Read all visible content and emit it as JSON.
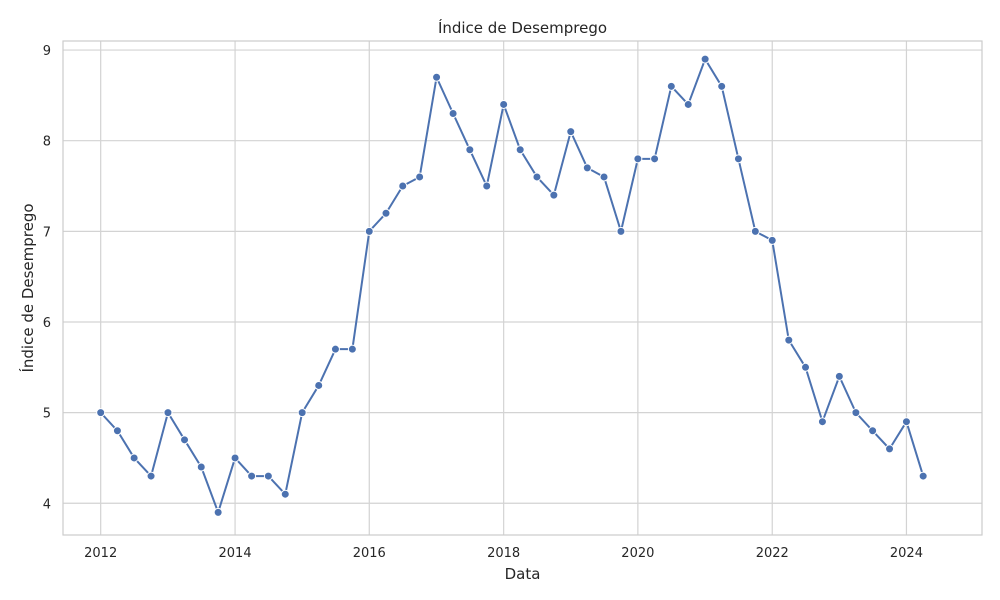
{
  "chart_data": {
    "type": "line",
    "title": "Índice de Desemprego",
    "xlabel": "Data",
    "ylabel": "Índice de Desemprego",
    "x_ticks": [
      "2012",
      "2014",
      "2016",
      "2018",
      "2020",
      "2022",
      "2024"
    ],
    "y_ticks": [
      "4",
      "5",
      "6",
      "7",
      "8",
      "9"
    ],
    "xlim": [
      "2011-06-10",
      "2025-02-15"
    ],
    "ylim": [
      3.65,
      9.1
    ],
    "grid": true,
    "marker": "circle",
    "colors": {
      "series": "#4c72b0",
      "grid": "#d3d3d3",
      "frame": "#cccccc"
    },
    "series": [
      {
        "name": "",
        "x": [
          "2012-01-01",
          "2012-04-01",
          "2012-07-01",
          "2012-10-01",
          "2013-01-01",
          "2013-04-01",
          "2013-07-01",
          "2013-10-01",
          "2014-01-01",
          "2014-04-01",
          "2014-07-01",
          "2014-10-01",
          "2015-01-01",
          "2015-04-01",
          "2015-07-01",
          "2015-10-01",
          "2016-01-01",
          "2016-04-01",
          "2016-07-01",
          "2016-10-01",
          "2017-01-01",
          "2017-04-01",
          "2017-07-01",
          "2017-10-01",
          "2018-01-01",
          "2018-04-01",
          "2018-07-01",
          "2018-10-01",
          "2019-01-01",
          "2019-04-01",
          "2019-07-01",
          "2019-10-01",
          "2020-01-01",
          "2020-04-01",
          "2020-07-01",
          "2020-10-01",
          "2021-01-01",
          "2021-04-01",
          "2021-07-01",
          "2021-10-01",
          "2022-01-01",
          "2022-04-01",
          "2022-07-01",
          "2022-10-01",
          "2023-01-01",
          "2023-04-01",
          "2023-07-01",
          "2023-10-01",
          "2024-01-01",
          "2024-04-01"
        ],
        "values": [
          5.0,
          4.8,
          4.5,
          4.3,
          5.0,
          4.7,
          4.4,
          3.9,
          4.5,
          4.3,
          4.3,
          4.1,
          5.0,
          5.3,
          5.7,
          5.7,
          7.0,
          7.2,
          7.5,
          7.6,
          8.7,
          8.3,
          7.9,
          7.5,
          8.4,
          7.9,
          7.6,
          7.4,
          8.1,
          7.7,
          7.6,
          7.0,
          7.8,
          7.8,
          8.6,
          8.4,
          8.9,
          8.6,
          7.8,
          7.0,
          6.9,
          5.8,
          5.5,
          4.9,
          5.4,
          5.0,
          4.8,
          4.6,
          4.9,
          4.3
        ]
      }
    ]
  }
}
